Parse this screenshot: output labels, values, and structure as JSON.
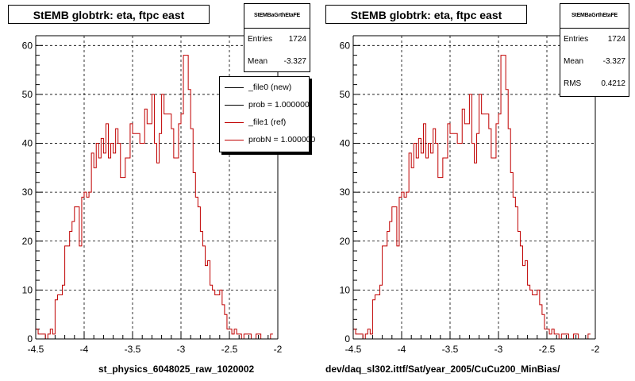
{
  "chart_data": [
    {
      "type": "histogram",
      "title": "StEMB globtrk: eta, ftpc east",
      "xlabel": "st_physics_6048025_raw_1020002",
      "xlim": [
        -4.5,
        -2
      ],
      "ylim": [
        0,
        62
      ],
      "xticks": [
        "-4.5",
        "-4",
        "-3.5",
        "-3",
        "-2.5",
        "-2"
      ],
      "yticks": [
        "0",
        "10",
        "20",
        "30",
        "40",
        "50",
        "60"
      ],
      "grid": true,
      "stats": {
        "name": "StEMBaGrthEtaFE",
        "entries_label": "Entries",
        "entries": "1724",
        "mean_label": "Mean",
        "mean": "-3.327"
      },
      "legend": {
        "placement": "top-right",
        "entries": [
          {
            "label": "_file0 (new)",
            "color": "#000000"
          },
          {
            "label": "prob = 1.000000",
            "color": "#000000"
          },
          {
            "label": "_file1 (ref)",
            "color": "#c00000"
          },
          {
            "label": "probN = 1.000000",
            "color": "#c00000"
          }
        ]
      },
      "series": [
        {
          "color": "#c00000",
          "bin_edges": [
            -4.5,
            -4.475,
            -4.45,
            -4.425,
            -4.4,
            -4.375,
            -4.35,
            -4.325,
            -4.3,
            -4.275,
            -4.25,
            -4.225,
            -4.2,
            -4.175,
            -4.15,
            -4.125,
            -4.1,
            -4.075,
            -4.05,
            -4.025,
            -4.0,
            -3.975,
            -3.95,
            -3.925,
            -3.9,
            -3.875,
            -3.85,
            -3.825,
            -3.8,
            -3.775,
            -3.75,
            -3.725,
            -3.7,
            -3.675,
            -3.65,
            -3.625,
            -3.6,
            -3.575,
            -3.55,
            -3.525,
            -3.5,
            -3.475,
            -3.45,
            -3.425,
            -3.4,
            -3.375,
            -3.35,
            -3.325,
            -3.3,
            -3.275,
            -3.25,
            -3.225,
            -3.2,
            -3.175,
            -3.15,
            -3.125,
            -3.1,
            -3.075,
            -3.05,
            -3.025,
            -3.0,
            -2.975,
            -2.95,
            -2.925,
            -2.9,
            -2.875,
            -2.85,
            -2.825,
            -2.8,
            -2.775,
            -2.75,
            -2.725,
            -2.7,
            -2.675,
            -2.65,
            -2.625,
            -2.6,
            -2.575,
            -2.55,
            -2.525,
            -2.5,
            -2.475,
            -2.45,
            -2.425,
            -2.4,
            -2.375,
            -2.35,
            -2.325,
            -2.3,
            -2.275,
            -2.25,
            -2.225,
            -2.2,
            -2.175,
            -2.15,
            -2.125,
            -2.1,
            -2.075,
            -2.05
          ],
          "counts": [
            2,
            1,
            1,
            1,
            0,
            1,
            2,
            1,
            8,
            9,
            9,
            11,
            19,
            19,
            22,
            24,
            27,
            27,
            19,
            29,
            30,
            29,
            30,
            38,
            35,
            40,
            37,
            41,
            38,
            44,
            37,
            40,
            38,
            43,
            40,
            33,
            33,
            37,
            37,
            44,
            42,
            42,
            42,
            40,
            40,
            47,
            44,
            44,
            50,
            40,
            36,
            42,
            50,
            46,
            46,
            46,
            43,
            37,
            37,
            44,
            46,
            58,
            58,
            51,
            43,
            34,
            29,
            27,
            22,
            19,
            15,
            16,
            11,
            10,
            9,
            9,
            10,
            7,
            5,
            2,
            2,
            1,
            2,
            1,
            1,
            0,
            1,
            1,
            1,
            0,
            0,
            1,
            1,
            0,
            0,
            0,
            0,
            1
          ]
        }
      ]
    },
    {
      "type": "histogram",
      "title": "StEMB globtrk: eta, ftpc east",
      "xlabel": "dev/daq_sl302.ittf/Sat/year_2005/CuCu200_MinBias/",
      "xlim": [
        -4.5,
        -2
      ],
      "ylim": [
        0,
        62
      ],
      "xticks": [
        "-4.5",
        "-4",
        "-3.5",
        "-3",
        "-2.5",
        "-2"
      ],
      "yticks": [
        "0",
        "10",
        "20",
        "30",
        "40",
        "50",
        "60"
      ],
      "grid": true,
      "stats": {
        "name": "StEMBaGrthEtaFE",
        "entries_label": "Entries",
        "entries": "1724",
        "mean_label": "Mean",
        "mean": "-3.327",
        "rms_label": "RMS",
        "rms": "0.4212"
      },
      "series": [
        {
          "color": "#c00000",
          "bin_edges": [
            -4.5,
            -4.475,
            -4.45,
            -4.425,
            -4.4,
            -4.375,
            -4.35,
            -4.325,
            -4.3,
            -4.275,
            -4.25,
            -4.225,
            -4.2,
            -4.175,
            -4.15,
            -4.125,
            -4.1,
            -4.075,
            -4.05,
            -4.025,
            -4.0,
            -3.975,
            -3.95,
            -3.925,
            -3.9,
            -3.875,
            -3.85,
            -3.825,
            -3.8,
            -3.775,
            -3.75,
            -3.725,
            -3.7,
            -3.675,
            -3.65,
            -3.625,
            -3.6,
            -3.575,
            -3.55,
            -3.525,
            -3.5,
            -3.475,
            -3.45,
            -3.425,
            -3.4,
            -3.375,
            -3.35,
            -3.325,
            -3.3,
            -3.275,
            -3.25,
            -3.225,
            -3.2,
            -3.175,
            -3.15,
            -3.125,
            -3.1,
            -3.075,
            -3.05,
            -3.025,
            -3.0,
            -2.975,
            -2.95,
            -2.925,
            -2.9,
            -2.875,
            -2.85,
            -2.825,
            -2.8,
            -2.775,
            -2.75,
            -2.725,
            -2.7,
            -2.675,
            -2.65,
            -2.625,
            -2.6,
            -2.575,
            -2.55,
            -2.525,
            -2.5,
            -2.475,
            -2.45,
            -2.425,
            -2.4,
            -2.375,
            -2.35,
            -2.325,
            -2.3,
            -2.275,
            -2.25,
            -2.225,
            -2.2,
            -2.175,
            -2.15,
            -2.125,
            -2.1,
            -2.075,
            -2.05
          ],
          "counts": [
            2,
            1,
            1,
            1,
            0,
            1,
            2,
            1,
            8,
            9,
            9,
            11,
            19,
            19,
            22,
            24,
            27,
            27,
            19,
            29,
            30,
            29,
            30,
            38,
            35,
            40,
            37,
            41,
            38,
            44,
            37,
            40,
            38,
            43,
            40,
            33,
            33,
            37,
            37,
            44,
            42,
            42,
            42,
            40,
            40,
            47,
            44,
            44,
            50,
            40,
            36,
            42,
            50,
            46,
            46,
            46,
            43,
            37,
            37,
            44,
            46,
            58,
            58,
            51,
            43,
            34,
            29,
            27,
            22,
            19,
            15,
            16,
            11,
            10,
            9,
            9,
            10,
            7,
            5,
            2,
            2,
            1,
            2,
            1,
            1,
            0,
            1,
            1,
            1,
            0,
            0,
            1,
            1,
            0,
            0,
            0,
            0,
            1
          ]
        }
      ]
    }
  ]
}
